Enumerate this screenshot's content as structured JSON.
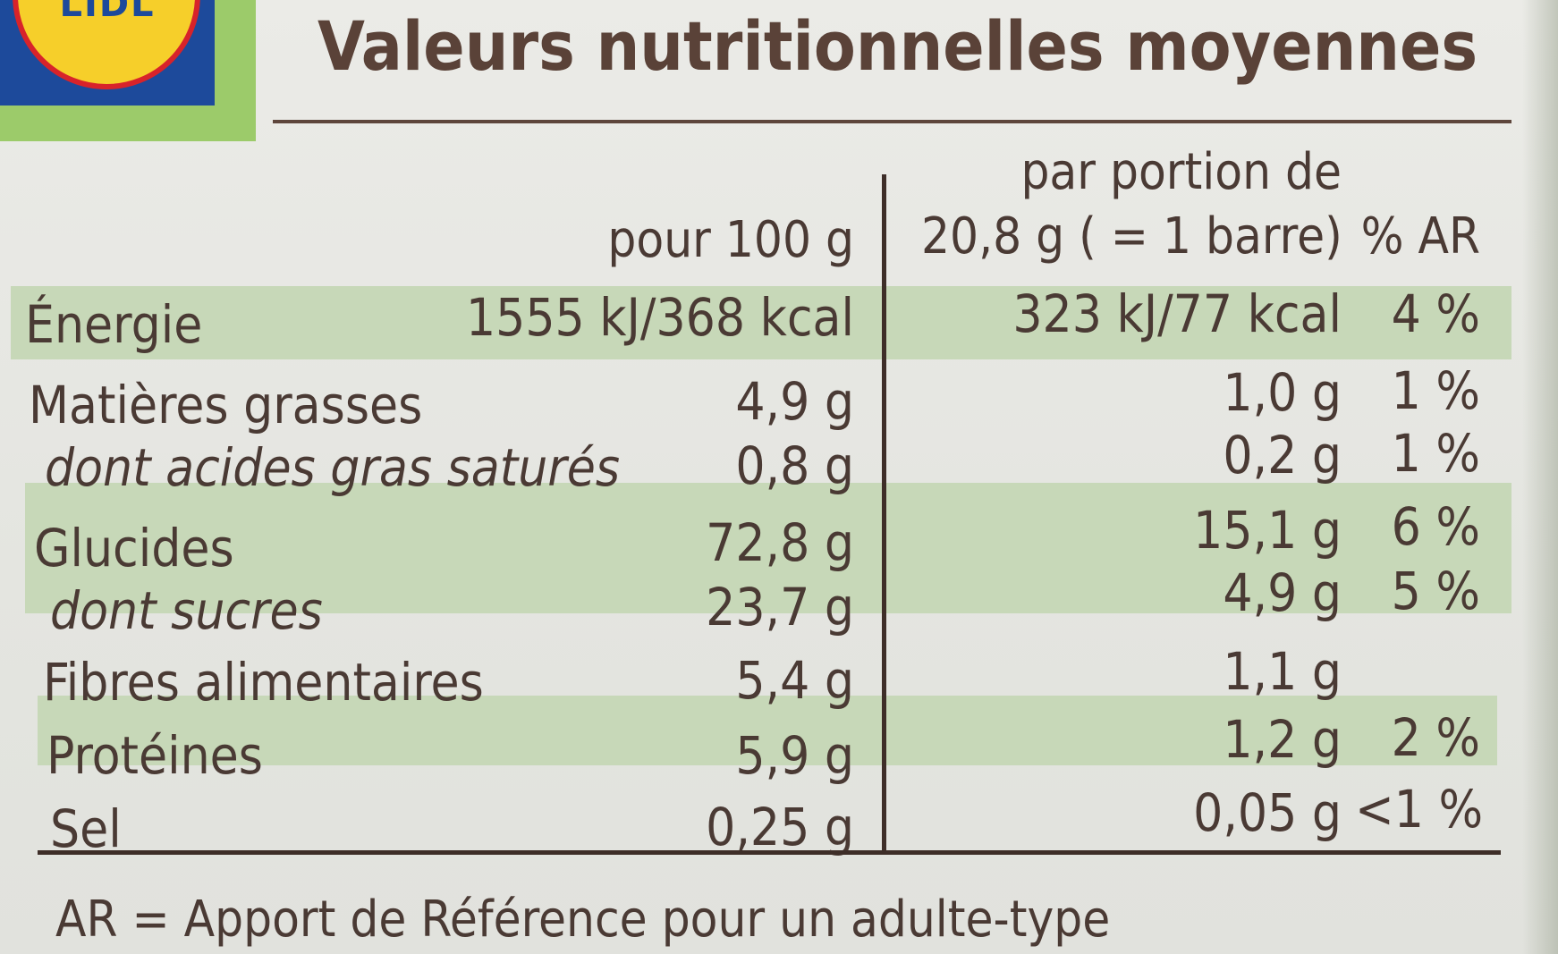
{
  "logo": {
    "text": "LIDL"
  },
  "title": "Valeurs nutritionnelles moyennes",
  "headers": {
    "per100": "pour 100 g",
    "portion_line1": "par portion de",
    "portion_line2": "20,8 g ( = 1 barre)",
    "ar": "% AR"
  },
  "rows": [
    {
      "label": "Énergie",
      "per100": "1555 kJ/368 kcal",
      "portion": "323 kJ/77 kcal",
      "ar": "4 %"
    },
    {
      "label": "Matières grasses",
      "per100": "4,9 g",
      "portion": "1,0 g",
      "ar": "1 %"
    },
    {
      "label": "dont acides gras saturés",
      "per100": "0,8 g",
      "portion": "0,2 g",
      "ar": "1 %"
    },
    {
      "label": "Glucides",
      "per100": "72,8 g",
      "portion": "15,1 g",
      "ar": "6 %"
    },
    {
      "label": "dont sucres",
      "per100": "23,7 g",
      "portion": "4,9 g",
      "ar": "5 %"
    },
    {
      "label": "Fibres alimentaires",
      "per100": "5,4 g",
      "portion": "1,1 g",
      "ar": ""
    },
    {
      "label": "Protéines",
      "per100": "5,9 g",
      "portion": "1,2 g",
      "ar": "2 %"
    },
    {
      "label": "Sel",
      "per100": "0,25 g",
      "portion": "0,05 g",
      "ar": "<1 %"
    }
  ],
  "footnote": "AR = Apport de Référence pour un adulte-type",
  "colors": {
    "band": "#c7d8b8",
    "text": "#4a3a34",
    "rule": "#3e2e28"
  }
}
